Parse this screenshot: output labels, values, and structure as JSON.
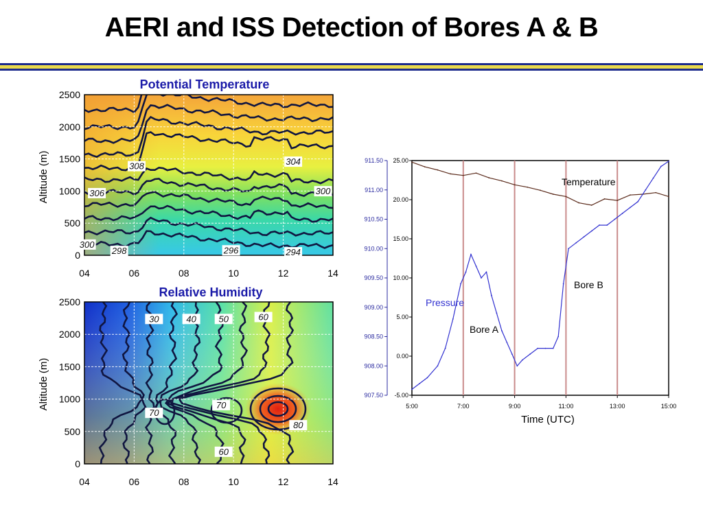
{
  "slide": {
    "title": "AERI and ISS Detection of Bores A & B"
  },
  "colors": {
    "rule_blue": "#1b2a8c",
    "rule_gold": "#e8d94c",
    "panel_title": "#1a1aa8",
    "bore_line": "#c98a8a",
    "temperature_line": "#5a2a1a",
    "pressure_line": "#3030d0"
  },
  "chart_data": [
    {
      "type": "heatmap",
      "title": "Potential Temperature",
      "ylabel": "Altitude (m)",
      "xlabel": "",
      "x_ticks": [
        "04",
        "06",
        "08",
        "10",
        "12",
        "14"
      ],
      "y_ticks": [
        "0",
        "500",
        "1000",
        "1500",
        "2000",
        "2500"
      ],
      "xlim": [
        4,
        14
      ],
      "ylim": [
        0,
        2500
      ],
      "grid": true,
      "contour_labels": [
        {
          "text": "308",
          "x": 6.1,
          "y": 1350
        },
        {
          "text": "304",
          "x": 12.4,
          "y": 1420
        },
        {
          "text": "306",
          "x": 4.5,
          "y": 930
        },
        {
          "text": "300",
          "x": 13.6,
          "y": 960
        },
        {
          "text": "300",
          "x": 4.1,
          "y": 130
        },
        {
          "text": "298",
          "x": 5.4,
          "y": 30
        },
        {
          "text": "296",
          "x": 9.9,
          "y": 40
        },
        {
          "text": "294",
          "x": 12.4,
          "y": 10
        }
      ]
    },
    {
      "type": "heatmap",
      "title": "Relative Humidity",
      "ylabel": "Altitude (m)",
      "xlabel": "",
      "x_ticks": [
        "04",
        "06",
        "08",
        "10",
        "12",
        "14"
      ],
      "y_ticks": [
        "0",
        "500",
        "1000",
        "1500",
        "2000",
        "2500"
      ],
      "xlim": [
        4,
        14
      ],
      "ylim": [
        0,
        2500
      ],
      "grid": true,
      "contour_labels": [
        {
          "text": "30",
          "x": 6.8,
          "y": 2200
        },
        {
          "text": "40",
          "x": 8.3,
          "y": 2200
        },
        {
          "text": "50",
          "x": 9.6,
          "y": 2200
        },
        {
          "text": "60",
          "x": 11.2,
          "y": 2230
        },
        {
          "text": "70",
          "x": 6.8,
          "y": 750
        },
        {
          "text": "70",
          "x": 9.5,
          "y": 870
        },
        {
          "text": "80",
          "x": 12.6,
          "y": 560
        },
        {
          "text": "60",
          "x": 9.6,
          "y": 150
        }
      ]
    },
    {
      "type": "line",
      "title": "",
      "xlabel": "Time (UTC)",
      "x_ticks": [
        "5:00",
        "7:00",
        "9:00",
        "11:00",
        "13:00",
        "15:00"
      ],
      "xlim": [
        5,
        15
      ],
      "y_left_ticks": [
        "907.50",
        "908.00",
        "908.50",
        "909.00",
        "909.50",
        "910.00",
        "910.50",
        "911.00",
        "911.50"
      ],
      "y_left_range": [
        907.5,
        911.5
      ],
      "y_right_ticks": [
        "-5.00",
        "0.00",
        "5.00",
        "10.00",
        "15.00",
        "20.00",
        "25.00"
      ],
      "y_right_range": [
        -5,
        25
      ],
      "vertical_lines_x": [
        7,
        9,
        11,
        13
      ],
      "series": [
        {
          "name": "Temperature",
          "axis": "right",
          "x": [
            5.0,
            5.5,
            6.0,
            6.5,
            7.0,
            7.5,
            8.0,
            8.5,
            9.0,
            9.5,
            10.0,
            10.5,
            11.0,
            11.5,
            12.0,
            12.5,
            13.0,
            13.5,
            14.0,
            14.5,
            15.0
          ],
          "values": [
            24.8,
            24.2,
            23.8,
            23.3,
            23.1,
            23.4,
            22.8,
            22.4,
            21.9,
            21.6,
            21.2,
            20.7,
            20.4,
            19.6,
            19.3,
            20.1,
            19.9,
            20.6,
            20.7,
            20.9,
            20.4
          ]
        },
        {
          "name": "Pressure",
          "axis": "left",
          "x": [
            5.0,
            5.3,
            5.6,
            6.0,
            6.3,
            6.6,
            6.9,
            7.1,
            7.3,
            7.5,
            7.7,
            7.9,
            8.1,
            8.3,
            8.5,
            8.7,
            8.9,
            9.1,
            9.3,
            9.6,
            9.9,
            10.2,
            10.5,
            10.7,
            10.9,
            11.1,
            11.4,
            11.7,
            12.0,
            12.3,
            12.6,
            12.9,
            13.2,
            13.5,
            13.8,
            14.1,
            14.4,
            14.7,
            15.0
          ],
          "values": [
            907.6,
            907.7,
            907.8,
            908.0,
            908.3,
            908.8,
            909.4,
            909.6,
            909.9,
            909.7,
            909.5,
            909.6,
            909.2,
            908.9,
            908.6,
            908.4,
            908.2,
            908.0,
            908.1,
            908.2,
            908.3,
            908.3,
            908.3,
            908.5,
            909.4,
            910.0,
            910.1,
            910.2,
            910.3,
            910.4,
            910.4,
            910.5,
            910.6,
            910.7,
            910.8,
            911.0,
            911.2,
            911.4,
            911.6
          ]
        }
      ],
      "annotations": [
        "Bore A",
        "Bore B"
      ]
    }
  ]
}
